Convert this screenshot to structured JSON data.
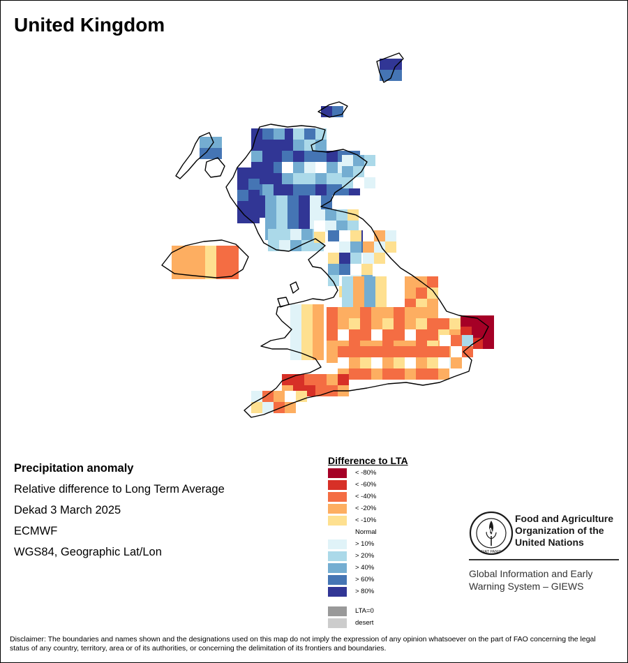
{
  "map": {
    "title": "United Kingdom",
    "variable": "Precipitation anomaly",
    "description": "Relative difference to Long Term Average",
    "period": "Dekad 3 March 2025",
    "source": "ECMWF",
    "projection": "WGS84, Geographic Lat/Lon"
  },
  "legend": {
    "title": "Difference to LTA",
    "items": [
      {
        "label": "< -80%",
        "color": "#a50026"
      },
      {
        "label": "< -60%",
        "color": "#d73027"
      },
      {
        "label": "< -40%",
        "color": "#f46d43"
      },
      {
        "label": "< -20%",
        "color": "#fdae61"
      },
      {
        "label": "< -10%",
        "color": "#fee090"
      },
      {
        "label": "Normal",
        "color": "#ffffff"
      },
      {
        "label": "> 10%",
        "color": "#e0f3f8"
      },
      {
        "label": "> 20%",
        "color": "#abd9e9"
      },
      {
        "label": "> 40%",
        "color": "#74add1"
      },
      {
        "label": "> 60%",
        "color": "#4575b4"
      },
      {
        "label": "> 80%",
        "color": "#313695"
      }
    ],
    "extra": [
      {
        "label": "LTA=0",
        "color": "#999999"
      },
      {
        "label": "desert",
        "color": "#cccccc"
      }
    ]
  },
  "branding": {
    "logo_text": "FAO",
    "logo_ring_text": "FIAT PANIS",
    "org_name": "Food and Agriculture\nOrganization of the\nUnited Nations",
    "system_name": "Global Information and Early\nWarning System – GIEWS"
  },
  "disclaimer": "Disclaimer: The boundaries and names shown and the designations used on this map do not imply the expression of any opinion whatsoever on the part of FAO concerning the legal status of any country, territory, area or of its authorities, or concerning the delimitation of its frontiers and boundaries."
}
